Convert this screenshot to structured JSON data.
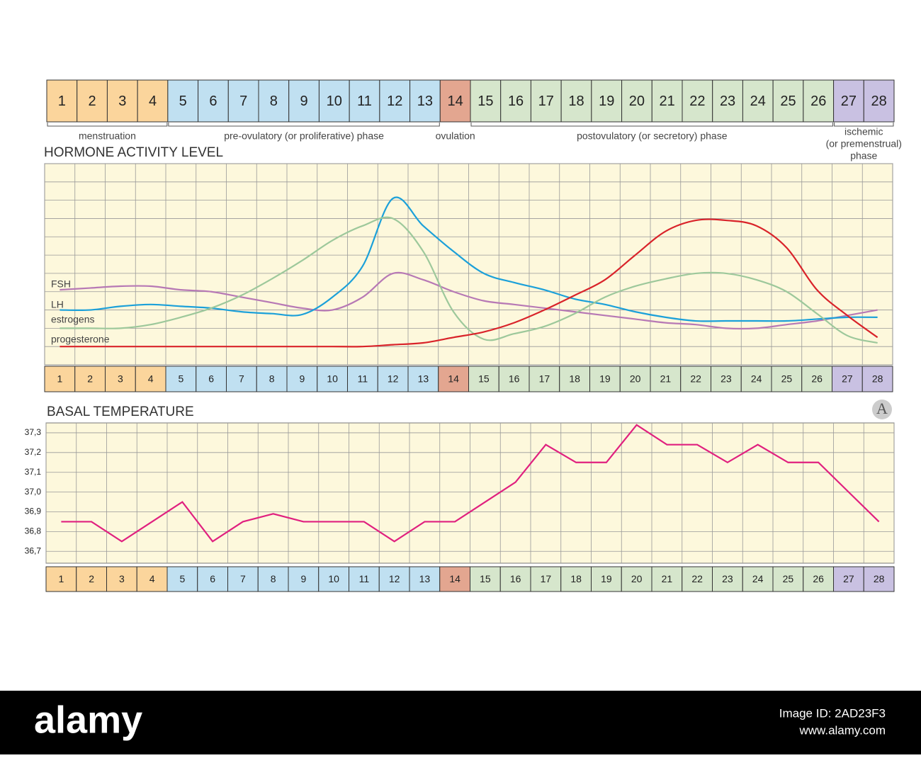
{
  "phases": [
    {
      "label": "menstruation",
      "days": [
        1,
        4
      ],
      "color": "#fbd59c"
    },
    {
      "label": "pre-ovulatory (or proliferative) phase",
      "days": [
        5,
        13
      ],
      "color": "#c0e0f1"
    },
    {
      "label": "ovulation",
      "days": [
        14,
        14
      ],
      "color": "#e3a690"
    },
    {
      "label": "postovulatory (or secretory) phase",
      "days": [
        15,
        26
      ],
      "color": "#d6e6cc"
    },
    {
      "label": [
        "ischemic",
        "(or premenstrual)",
        "phase"
      ],
      "days": [
        27,
        28
      ],
      "color": "#c9c1e2"
    }
  ],
  "logo": "A",
  "footer": {
    "brand": "alamy",
    "image_id": "Image ID: 2AD23F3",
    "url": "www.alamy.com"
  },
  "chart_data": [
    {
      "type": "line",
      "title": "HORMONE ACTIVITY LEVEL",
      "smooth": true,
      "grid": true,
      "show_ytick_labels": false,
      "background": "#fdf8dc",
      "x": [
        1,
        2,
        3,
        4,
        5,
        6,
        7,
        8,
        9,
        10,
        11,
        12,
        13,
        14,
        15,
        16,
        17,
        18,
        19,
        20,
        21,
        22,
        23,
        24,
        25,
        26,
        27,
        28
      ],
      "xlim": [
        0.5,
        28.5
      ],
      "xticks": [
        0.5,
        1.5,
        2.5,
        3.5,
        4.5,
        5.5,
        6.5,
        7.5,
        8.5,
        9.5,
        10.5,
        11.5,
        12.5,
        13.5,
        14.5,
        15.5,
        16.5,
        17.5,
        18.5,
        19.5,
        20.5,
        21.5,
        22.5,
        23.5,
        24.5,
        25.5,
        26.5,
        27.5,
        28.5
      ],
      "ylim": [
        0,
        11
      ],
      "yticks": [
        0,
        1,
        2,
        3,
        4,
        5,
        6,
        7,
        8,
        9,
        10,
        11
      ],
      "series": [
        {
          "name": "FSH",
          "color": "#b779b5",
          "values": [
            4.1,
            4.2,
            4.3,
            4.3,
            4.1,
            4.0,
            3.7,
            3.4,
            3.1,
            3.0,
            3.7,
            5.0,
            4.65,
            4.0,
            3.5,
            3.3,
            3.1,
            2.9,
            2.7,
            2.5,
            2.3,
            2.2,
            2.0,
            2.0,
            2.2,
            2.4,
            2.7,
            3.0
          ]
        },
        {
          "name": "LH",
          "color": "#1ba0d9",
          "values": [
            3.0,
            3.0,
            3.2,
            3.3,
            3.2,
            3.1,
            2.9,
            2.8,
            2.75,
            3.7,
            5.4,
            9.1,
            7.6,
            6.2,
            5.0,
            4.5,
            4.1,
            3.6,
            3.3,
            2.9,
            2.6,
            2.4,
            2.4,
            2.4,
            2.4,
            2.5,
            2.6,
            2.6
          ]
        },
        {
          "name": "estrogens",
          "color": "#9dc89b",
          "values": [
            2.0,
            2.0,
            2.0,
            2.2,
            2.6,
            3.1,
            3.8,
            4.7,
            5.7,
            6.8,
            7.6,
            8.0,
            6.2,
            2.9,
            1.4,
            1.7,
            2.1,
            2.8,
            3.7,
            4.3,
            4.7,
            5.0,
            5.0,
            4.65,
            4.0,
            2.8,
            1.6,
            1.2
          ]
        },
        {
          "name": "progesterone",
          "color": "#d9232a",
          "values": [
            1.0,
            1.0,
            1.0,
            1.0,
            1.0,
            1.0,
            1.0,
            1.0,
            1.0,
            1.0,
            1.0,
            1.1,
            1.2,
            1.5,
            1.8,
            2.3,
            3.0,
            3.8,
            4.65,
            6.0,
            7.3,
            7.9,
            7.9,
            7.6,
            6.4,
            4.1,
            2.7,
            1.5
          ]
        }
      ]
    },
    {
      "type": "line",
      "title": "BASAL TEMPERATURE",
      "smooth": false,
      "grid": true,
      "show_ytick_labels": true,
      "background": "#fdf8dc",
      "x": [
        1,
        2,
        3,
        4,
        5,
        6,
        7,
        8,
        9,
        10,
        11,
        12,
        13,
        14,
        15,
        16,
        17,
        18,
        19,
        20,
        21,
        22,
        23,
        24,
        25,
        26,
        27,
        28
      ],
      "xlim": [
        0.5,
        28.5
      ],
      "xticks": [
        0.5,
        1.5,
        2.5,
        3.5,
        4.5,
        5.5,
        6.5,
        7.5,
        8.5,
        9.5,
        10.5,
        11.5,
        12.5,
        13.5,
        14.5,
        15.5,
        16.5,
        17.5,
        18.5,
        19.5,
        20.5,
        21.5,
        22.5,
        23.5,
        24.5,
        25.5,
        26.5,
        27.5,
        28.5
      ],
      "ylim": [
        36.64,
        37.35
      ],
      "yticks": [
        {
          "value": 37.3,
          "label": "37,3"
        },
        {
          "value": 37.2,
          "label": "37,2"
        },
        {
          "value": 37.1,
          "label": "37,1"
        },
        {
          "value": 37.0,
          "label": "37,0"
        },
        {
          "value": 36.9,
          "label": "36,9"
        },
        {
          "value": 36.8,
          "label": "36,8"
        },
        {
          "value": 36.7,
          "label": "36,7"
        }
      ],
      "series": [
        {
          "color": "#e0207f",
          "values": [
            36.85,
            36.85,
            36.75,
            36.85,
            36.95,
            36.75,
            36.85,
            36.89,
            36.85,
            36.85,
            36.85,
            36.75,
            36.85,
            36.85,
            36.95,
            37.05,
            37.24,
            37.15,
            37.15,
            37.34,
            37.24,
            37.24,
            37.15,
            37.24,
            37.15,
            37.15,
            37.0,
            36.85
          ]
        }
      ]
    }
  ]
}
